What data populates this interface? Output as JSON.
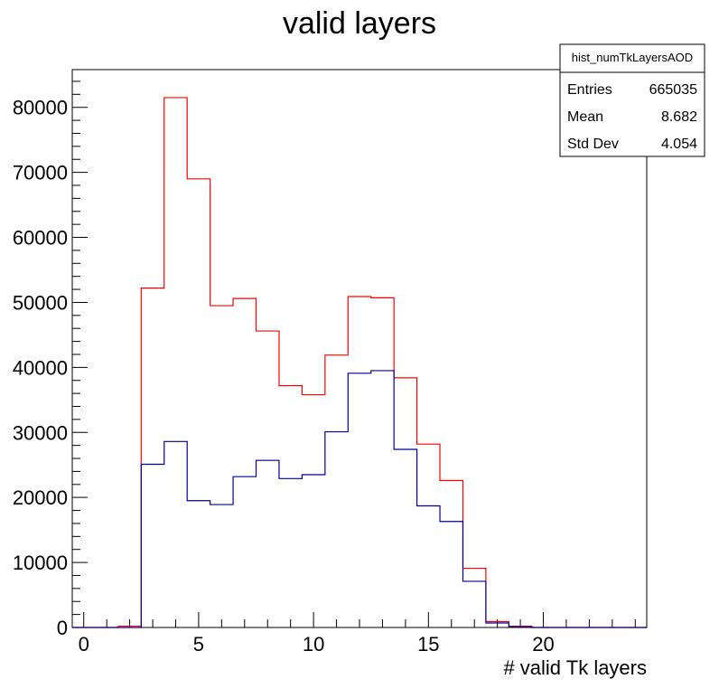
{
  "chart_data": {
    "type": "histogram",
    "title": "valid layers",
    "xlabel": "# valid Tk layers",
    "ylabel": "",
    "xlim": [
      -0.5,
      24.5
    ],
    "ylim": [
      0,
      85800
    ],
    "x_ticks": [
      0,
      5,
      10,
      15,
      20
    ],
    "y_ticks": [
      0,
      10000,
      20000,
      30000,
      40000,
      50000,
      60000,
      70000,
      80000
    ],
    "bin_edges": [
      -0.5,
      0.5,
      1.5,
      2.5,
      3.5,
      4.5,
      5.5,
      6.5,
      7.5,
      8.5,
      9.5,
      10.5,
      11.5,
      12.5,
      13.5,
      14.5,
      15.5,
      16.5,
      17.5,
      18.5,
      19.5,
      20.5,
      21.5,
      22.5,
      23.5,
      24.5
    ],
    "series": [
      {
        "color": "#ff0000",
        "values": [
          0,
          0,
          200,
          52200,
          81500,
          69000,
          49500,
          50600,
          45600,
          37200,
          35800,
          41900,
          50900,
          50700,
          38400,
          28200,
          22600,
          9100,
          900,
          200,
          0,
          0,
          0,
          0,
          0
        ]
      },
      {
        "color": "#000099",
        "values": [
          0,
          0,
          0,
          25100,
          28600,
          19500,
          18900,
          23200,
          25700,
          22900,
          23500,
          30100,
          39100,
          39500,
          27400,
          18700,
          16300,
          7100,
          700,
          100,
          0,
          0,
          0,
          0,
          0
        ]
      }
    ],
    "grid": false,
    "stats": {
      "name": "hist_numTkLayersAOD",
      "rows": [
        {
          "label": "Entries",
          "value": "665035"
        },
        {
          "label": "Mean",
          "value": "8.682"
        },
        {
          "label": "Std Dev",
          "value": "4.054"
        }
      ]
    }
  }
}
